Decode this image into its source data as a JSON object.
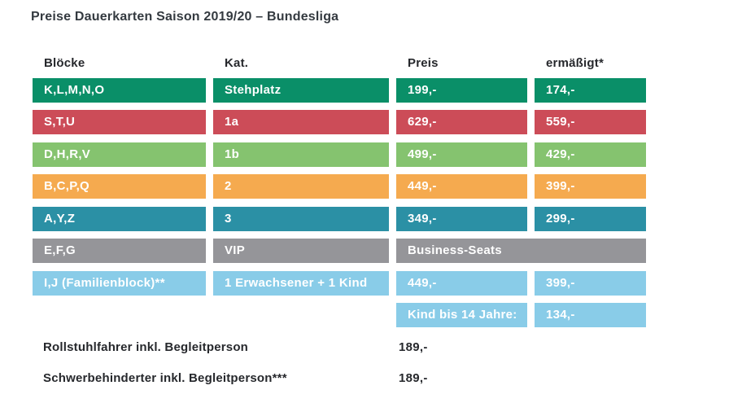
{
  "page": {
    "title": "Preise Dauerkarten Saison 2019/20 – Bundesliga"
  },
  "colors": {
    "green": "#0a8f68",
    "red": "#cc4c58",
    "lightgreen": "#85c36f",
    "orange": "#f5aa4f",
    "teal": "#2b90a5",
    "gray": "#959599",
    "lightblue": "#89cce8",
    "heading_text": "#343a40",
    "cell_text": "#ffffff"
  },
  "table": {
    "headers": {
      "bloecke": "Blöcke",
      "kat": "Kat.",
      "preis": "Preis",
      "ermaessigt": "ermäßigt*"
    },
    "rows": [
      {
        "bloecke": "K,L,M,N,O",
        "kat": "Stehplatz",
        "preis": "199,-",
        "ermaessigt": "174,-"
      },
      {
        "bloecke": "S,T,U",
        "kat": "1a",
        "preis": "629,-",
        "ermaessigt": "559,-"
      },
      {
        "bloecke": "D,H,R,V",
        "kat": "1b",
        "preis": "499,-",
        "ermaessigt": "429,-"
      },
      {
        "bloecke": "B,C,P,Q",
        "kat": "2",
        "preis": "449,-",
        "ermaessigt": "399,-"
      },
      {
        "bloecke": "A,Y,Z",
        "kat": "3",
        "preis": "349,-",
        "ermaessigt": "299,-"
      },
      {
        "bloecke": "E,F,G",
        "kat": "VIP",
        "business": "Business-Seats"
      },
      {
        "bloecke": "I,J (Familienblock)**",
        "kat": "1 Erwachsener + 1 Kind",
        "preis": "449,-",
        "ermaessigt": "399,-"
      },
      {
        "preis": "Kind bis 14 Jahre:",
        "ermaessigt": "134,-"
      }
    ]
  },
  "footer": {
    "rows": [
      {
        "label": "Rollstuhlfahrer inkl. Begleitperson",
        "preis": "189,-"
      },
      {
        "label": "Schwerbehinderter inkl. Begleitperson***",
        "preis": "189,-"
      }
    ]
  }
}
